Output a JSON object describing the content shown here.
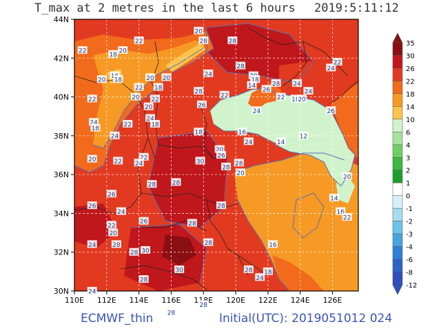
{
  "title": {
    "left": "T_max at 2 metres in the last 6 hours",
    "right": "2019:5:11:12"
  },
  "footer": {
    "left": "ECMWF_thin",
    "right": "Initial(UTC): 2019051012  024"
  },
  "map": {
    "lon_ticks": [
      "110E",
      "112E",
      "114E",
      "116E",
      "118E",
      "120E",
      "122E",
      "124E",
      "126E"
    ],
    "lat_ticks": [
      "44N",
      "42N",
      "40N",
      "38N",
      "36N",
      "34N",
      "32N",
      "30N"
    ],
    "contour_labels": [
      {
        "text": "20",
        "lon": 117.7,
        "lat": 43.4
      },
      {
        "text": "28",
        "lon": 119.8,
        "lat": 42.9
      },
      {
        "text": "22",
        "lon": 110.5,
        "lat": 42.4
      },
      {
        "text": "18",
        "lon": 112.4,
        "lat": 42.2
      },
      {
        "text": "20",
        "lon": 113.0,
        "lat": 42.4
      },
      {
        "text": "22",
        "lon": 114.0,
        "lat": 42.9
      },
      {
        "text": "20",
        "lon": 114.7,
        "lat": 41.0
      },
      {
        "text": "20",
        "lon": 115.7,
        "lat": 41.0
      },
      {
        "text": "16",
        "lon": 112.5,
        "lat": 41.1
      },
      {
        "text": "18",
        "lon": 112.7,
        "lat": 40.9
      },
      {
        "text": "20",
        "lon": 111.7,
        "lat": 40.9
      },
      {
        "text": "22",
        "lon": 114.0,
        "lat": 40.5
      },
      {
        "text": "18",
        "lon": 115.2,
        "lat": 40.5
      },
      {
        "text": "20",
        "lon": 113.8,
        "lat": 40.0
      },
      {
        "text": "22",
        "lon": 111.1,
        "lat": 39.9
      },
      {
        "text": "28",
        "lon": 117.7,
        "lat": 40.3
      },
      {
        "text": "24",
        "lon": 118.3,
        "lat": 41.2
      },
      {
        "text": "28",
        "lon": 120.3,
        "lat": 41.6
      },
      {
        "text": "28",
        "lon": 118.0,
        "lat": 42.9
      },
      {
        "text": "22",
        "lon": 119.3,
        "lat": 40.1
      },
      {
        "text": "20",
        "lon": 121.1,
        "lat": 41.1
      },
      {
        "text": "18",
        "lon": 121.2,
        "lat": 40.9
      },
      {
        "text": "14",
        "lon": 121.0,
        "lat": 40.6
      },
      {
        "text": "26",
        "lon": 121.9,
        "lat": 40.4
      },
      {
        "text": "28",
        "lon": 122.5,
        "lat": 40.7
      },
      {
        "text": "24",
        "lon": 123.8,
        "lat": 40.7
      },
      {
        "text": "24",
        "lon": 124.5,
        "lat": 40.3
      },
      {
        "text": "22",
        "lon": 122.8,
        "lat": 40.0
      },
      {
        "text": "18",
        "lon": 123.7,
        "lat": 39.9
      },
      {
        "text": "20",
        "lon": 124.1,
        "lat": 39.9
      },
      {
        "text": "24",
        "lon": 125.9,
        "lat": 41.5
      },
      {
        "text": "22",
        "lon": 126.3,
        "lat": 41.8
      },
      {
        "text": "26",
        "lon": 125.9,
        "lat": 39.3
      },
      {
        "text": "24",
        "lon": 121.3,
        "lat": 39.3
      },
      {
        "text": "22",
        "lon": 115.0,
        "lat": 39.9
      },
      {
        "text": "20",
        "lon": 114.6,
        "lat": 39.5
      },
      {
        "text": "26",
        "lon": 117.9,
        "lat": 39.6
      },
      {
        "text": "24",
        "lon": 114.7,
        "lat": 38.9
      },
      {
        "text": "18",
        "lon": 115.0,
        "lat": 38.6
      },
      {
        "text": "22",
        "lon": 113.3,
        "lat": 38.6
      },
      {
        "text": "24",
        "lon": 111.2,
        "lat": 38.7
      },
      {
        "text": "18",
        "lon": 111.3,
        "lat": 38.4
      },
      {
        "text": "24",
        "lon": 112.5,
        "lat": 38.0
      },
      {
        "text": "18",
        "lon": 117.7,
        "lat": 38.2
      },
      {
        "text": "16",
        "lon": 120.4,
        "lat": 38.2
      },
      {
        "text": "24",
        "lon": 120.8,
        "lat": 37.7
      },
      {
        "text": "14",
        "lon": 122.8,
        "lat": 37.7
      },
      {
        "text": "12",
        "lon": 124.2,
        "lat": 38.0
      },
      {
        "text": "20",
        "lon": 119.0,
        "lat": 37.3
      },
      {
        "text": "26",
        "lon": 119.1,
        "lat": 37.0
      },
      {
        "text": "22",
        "lon": 114.3,
        "lat": 36.9
      },
      {
        "text": "24",
        "lon": 114.0,
        "lat": 36.6
      },
      {
        "text": "22",
        "lon": 112.7,
        "lat": 36.7
      },
      {
        "text": "20",
        "lon": 111.1,
        "lat": 36.8
      },
      {
        "text": "30",
        "lon": 117.8,
        "lat": 36.7
      },
      {
        "text": "28",
        "lon": 119.4,
        "lat": 36.4
      },
      {
        "text": "28",
        "lon": 120.2,
        "lat": 36.6
      },
      {
        "text": "20",
        "lon": 120.3,
        "lat": 36.1
      },
      {
        "text": "28",
        "lon": 114.8,
        "lat": 35.5
      },
      {
        "text": "28",
        "lon": 116.3,
        "lat": 35.6
      },
      {
        "text": "26",
        "lon": 112.3,
        "lat": 35.0
      },
      {
        "text": "26",
        "lon": 111.1,
        "lat": 34.4
      },
      {
        "text": "24",
        "lon": 112.9,
        "lat": 34.1
      },
      {
        "text": "28",
        "lon": 119.1,
        "lat": 34.4
      },
      {
        "text": "14",
        "lon": 126.1,
        "lat": 34.8
      },
      {
        "text": "16",
        "lon": 126.5,
        "lat": 34.1
      },
      {
        "text": "22",
        "lon": 126.9,
        "lat": 33.8
      },
      {
        "text": "20",
        "lon": 126.9,
        "lat": 35.9
      },
      {
        "text": "22",
        "lon": 112.3,
        "lat": 33.4
      },
      {
        "text": "20",
        "lon": 112.4,
        "lat": 33.0
      },
      {
        "text": "26",
        "lon": 114.3,
        "lat": 33.6
      },
      {
        "text": "28",
        "lon": 117.3,
        "lat": 33.5
      },
      {
        "text": "28",
        "lon": 118.3,
        "lat": 32.5
      },
      {
        "text": "16",
        "lon": 122.3,
        "lat": 32.4
      },
      {
        "text": "24",
        "lon": 111.1,
        "lat": 32.4
      },
      {
        "text": "28",
        "lon": 112.6,
        "lat": 32.4
      },
      {
        "text": "30",
        "lon": 114.4,
        "lat": 32.1
      },
      {
        "text": "28",
        "lon": 113.7,
        "lat": 32.0
      },
      {
        "text": "30",
        "lon": 116.5,
        "lat": 31.1
      },
      {
        "text": "28",
        "lon": 120.8,
        "lat": 31.1
      },
      {
        "text": "18",
        "lon": 122.0,
        "lat": 31.0
      },
      {
        "text": "24",
        "lon": 121.5,
        "lat": 30.7
      },
      {
        "text": "28",
        "lon": 114.3,
        "lat": 30.6
      },
      {
        "text": "24",
        "lon": 111.1,
        "lat": 30.0
      },
      {
        "text": "28",
        "lon": 118.0,
        "lat": 29.3
      },
      {
        "text": "28",
        "lon": 116.0,
        "lat": 28.9
      }
    ]
  },
  "colorbar": {
    "levels": [
      "35",
      "30",
      "26",
      "22",
      "18",
      "14",
      "10",
      "6",
      "4",
      "3",
      "2",
      "1",
      "0",
      "-1",
      "-2",
      "-3",
      "-4",
      "-6",
      "-8",
      "-12"
    ],
    "colors": [
      "#8b0f12",
      "#c0171c",
      "#e23a20",
      "#f26a1c",
      "#f79a25",
      "#fcc34d",
      "#d0f3cc",
      "#a6e39c",
      "#6fcf64",
      "#3fb83e",
      "#1f9e2e",
      "#ffffff",
      "#d6f0fb",
      "#a6dcf2",
      "#6ec1ea",
      "#4aa2df",
      "#2f7fd4",
      "#2e62c8",
      "#2f4fbf"
    ]
  }
}
